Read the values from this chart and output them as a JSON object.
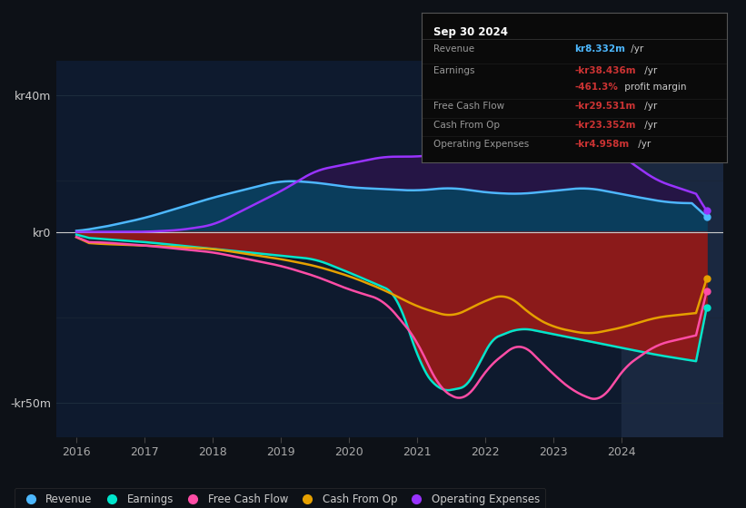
{
  "bg_color": "#0d1117",
  "plot_bg": "#0e1a2e",
  "legend": [
    {
      "label": "Revenue",
      "color": "#4db8ff"
    },
    {
      "label": "Earnings",
      "color": "#00e5cc"
    },
    {
      "label": "Free Cash Flow",
      "color": "#ff4da6"
    },
    {
      "label": "Cash From Op",
      "color": "#e5a000"
    },
    {
      "label": "Operating Expenses",
      "color": "#9933ff"
    }
  ],
  "x_ticks": [
    2016,
    2017,
    2018,
    2019,
    2020,
    2021,
    2022,
    2023,
    2024
  ],
  "ylim": [
    -60,
    50
  ],
  "xlim": [
    2015.7,
    2025.5
  ],
  "grid_color": "#1a2a3a",
  "zero_line_color": "#888888",
  "highlight_x_start": 2024.0,
  "highlight_x_end": 2025.5,
  "revenue_color": "#4db8ff",
  "revenue_fill": "#0a3d5c",
  "earnings_color": "#00e5cc",
  "earnings_fill": "#8b1a1a",
  "fcf_color": "#ff4da6",
  "cfop_color": "#e5a000",
  "opex_color": "#9933ff",
  "opex_fill": "#2a1a4d",
  "info_title": "Sep 30 2024",
  "info_rows": [
    {
      "label": "Revenue",
      "colored": "kr8.332m",
      "rest": " /yr",
      "color": "#4db8ff"
    },
    {
      "label": "Earnings",
      "colored": "-kr38.436m",
      "rest": " /yr",
      "color": "#cc3333"
    },
    {
      "label": "",
      "colored": "-461.3%",
      "rest": " profit margin",
      "color": "#cc3333"
    },
    {
      "label": "Free Cash Flow",
      "colored": "-kr29.531m",
      "rest": " /yr",
      "color": "#cc3333"
    },
    {
      "label": "Cash From Op",
      "colored": "-kr23.352m",
      "rest": " /yr",
      "color": "#cc3333"
    },
    {
      "label": "Operating Expenses",
      "colored": "-kr4.958m",
      "rest": " /yr",
      "color": "#cc3333"
    }
  ]
}
